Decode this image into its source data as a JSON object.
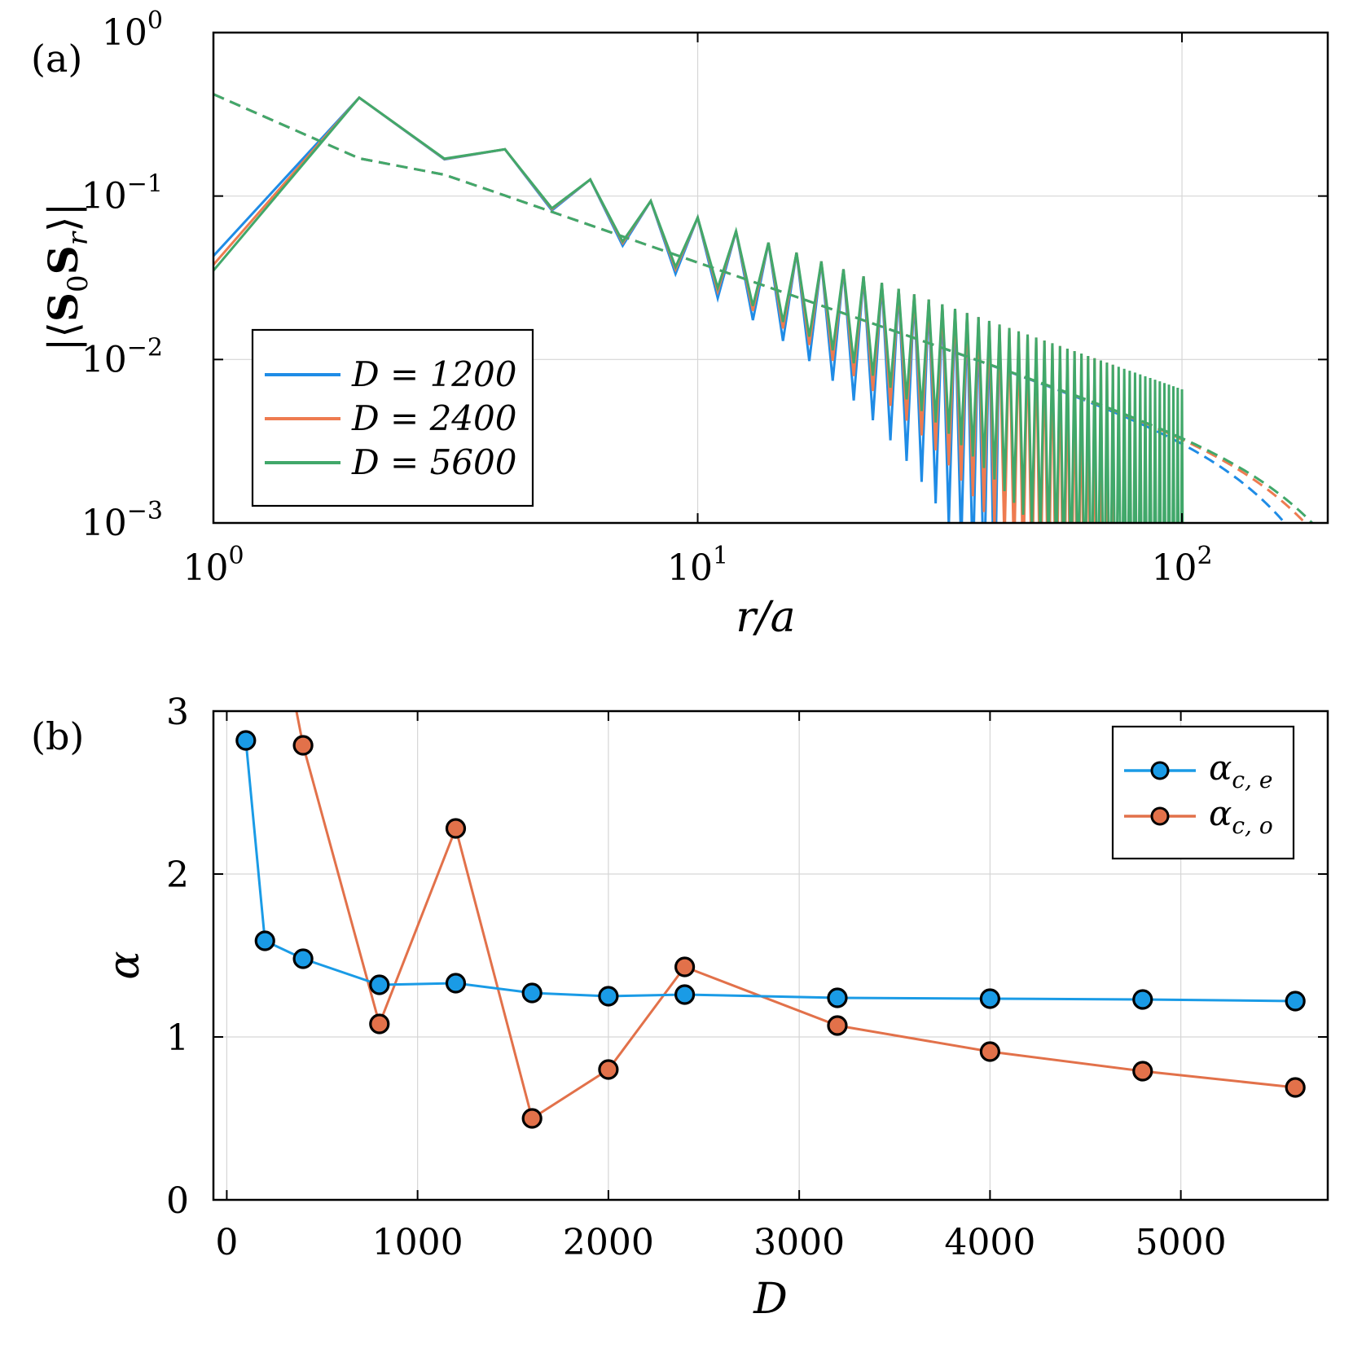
{
  "chart_data": [
    {
      "panel_label": "(a)",
      "type": "line",
      "log_x": true,
      "log_y": true,
      "xlim": [
        1,
        200
      ],
      "ylim": [
        0.001,
        1
      ],
      "xlabel": "r/a",
      "ylabel": "|⟨S₀S_r⟩|",
      "x_ticks": [
        {
          "value": 1,
          "base": "10",
          "exp": "0"
        },
        {
          "value": 10,
          "base": "10",
          "exp": "1"
        },
        {
          "value": 100,
          "base": "10",
          "exp": "2"
        }
      ],
      "y_ticks": [
        {
          "value": 1,
          "base": "10",
          "exp": "0"
        },
        {
          "value": 0.1,
          "base": "10",
          "exp": "−1"
        },
        {
          "value": 0.01,
          "base": "10",
          "exp": "−2"
        },
        {
          "value": 0.001,
          "base": "10",
          "exp": "−3"
        }
      ],
      "grid": true,
      "legend_position": "bottom-left",
      "series": [
        {
          "name": "D = 1200",
          "color": "#1f8ce6",
          "odd_decay": 30,
          "odd_end": 42,
          "even_end": 165
        },
        {
          "name": "D = 2400",
          "color": "#ee7b50",
          "odd_decay": 40,
          "odd_end": 73,
          "even_end": 190
        },
        {
          "name": "D = 5600",
          "color": "#41a86a",
          "odd_decay": 52,
          "odd_end": 101,
          "even_end": 200
        }
      ]
    },
    {
      "panel_label": "(b)",
      "type": "scatter",
      "xlim": [
        -70,
        5770
      ],
      "ylim": [
        0,
        3
      ],
      "xlabel": "D",
      "ylabel": "α",
      "x_ticks": [
        "0",
        "1000",
        "2000",
        "3000",
        "4000",
        "5000"
      ],
      "x_tick_values": [
        0,
        1000,
        2000,
        3000,
        4000,
        5000
      ],
      "y_ticks": [
        "0",
        "1",
        "2",
        "3"
      ],
      "y_tick_values": [
        0,
        1,
        2,
        3
      ],
      "grid": true,
      "legend_position": "top-right",
      "series": [
        {
          "name": "α_{c,e}",
          "color": "#1a9be6",
          "x": [
            100,
            200,
            400,
            800,
            1200,
            1600,
            2000,
            2400,
            3200,
            4000,
            4800,
            5600
          ],
          "y": [
            2.82,
            1.59,
            1.48,
            1.32,
            1.33,
            1.27,
            1.25,
            1.26,
            1.24,
            1.235,
            1.23,
            1.22
          ]
        },
        {
          "name": "α_{c,o}",
          "color": "#e2714a",
          "x": [
            400,
            800,
            1200,
            1600,
            2000,
            2400,
            3200,
            4000,
            4800,
            5600
          ],
          "y": [
            2.79,
            1.08,
            2.28,
            0.5,
            0.8,
            1.43,
            1.07,
            0.91,
            0.79,
            0.69
          ],
          "lead_in": {
            "x": 365,
            "y": 3.0
          }
        }
      ]
    }
  ]
}
